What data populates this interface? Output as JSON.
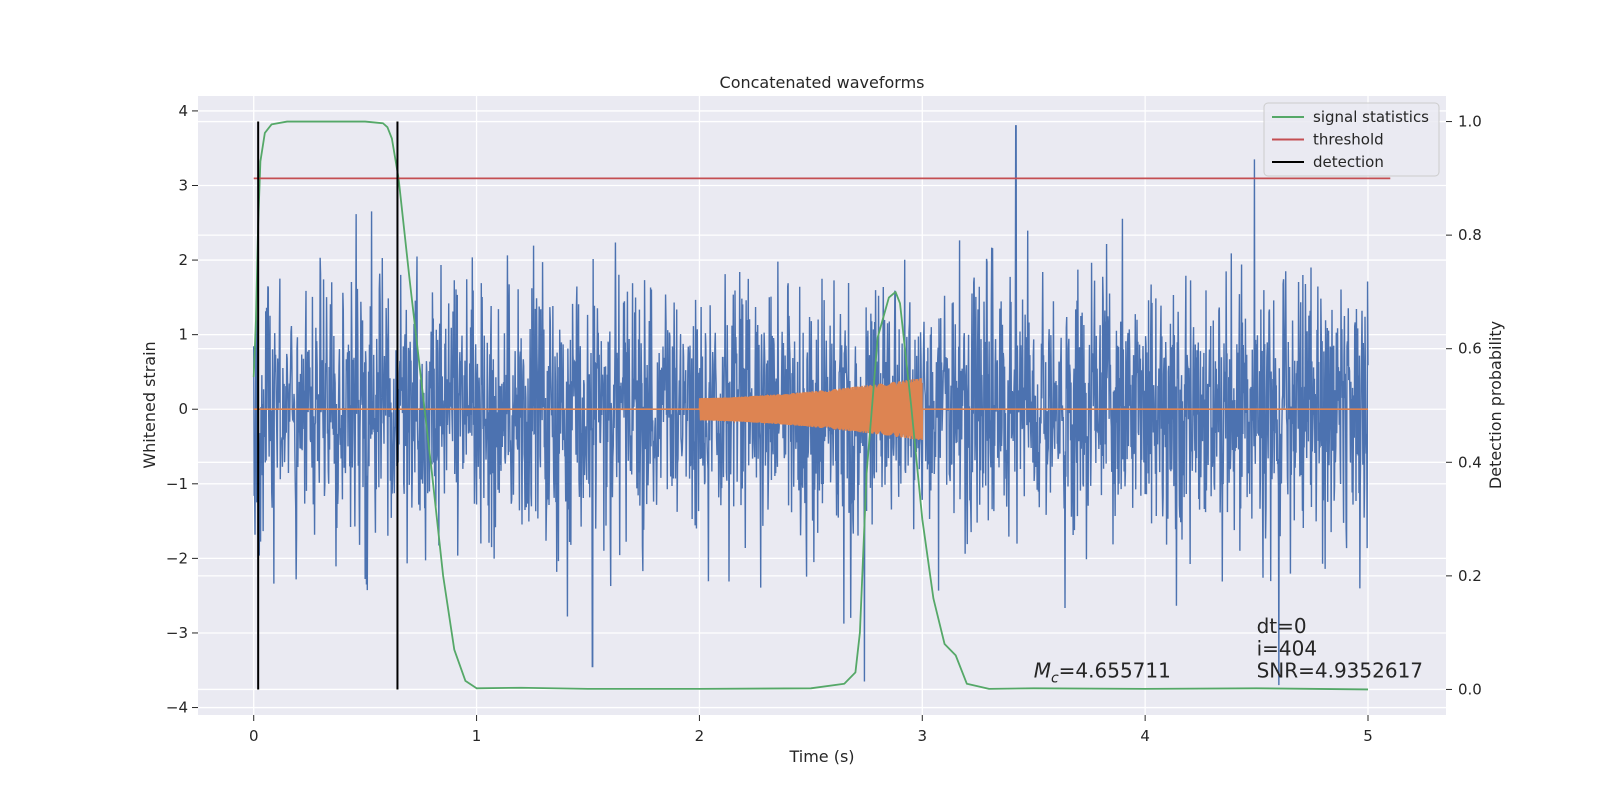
{
  "chart_data": {
    "type": "line",
    "title": "Concatenated waveforms",
    "xlabel": "Time (s)",
    "ylabel_left": "Whitened strain",
    "ylabel_right": "Detection probability",
    "xlim": [
      -0.25,
      5.35
    ],
    "ylim_left": [
      -4.1,
      4.2
    ],
    "ylim_right": [
      -0.045,
      1.045
    ],
    "x_ticks": [
      0,
      1,
      2,
      3,
      4,
      5
    ],
    "y_left_ticks": [
      4,
      3,
      2,
      1,
      0,
      -1,
      -2,
      -3,
      -4
    ],
    "y_right_ticks": [
      1.0,
      0.8,
      0.6,
      0.4,
      0.2,
      0.0
    ],
    "grid": true,
    "legend_position": "upper right",
    "legend": [
      {
        "label": "signal statistics",
        "color": "#55a868"
      },
      {
        "label": "threshold",
        "color": "#c44e52"
      },
      {
        "label": "detection",
        "color": "#000000"
      }
    ],
    "series": [
      {
        "axis": "left",
        "color": "#4c72b0",
        "kind": "noise",
        "x_range": [
          0,
          5
        ],
        "envelope": [
          -2.5,
          2.5
        ],
        "notable_peaks": [
          [
            3.42,
            3.8
          ],
          [
            2.74,
            -3.65
          ],
          [
            1.52,
            -3.45
          ],
          [
            4.49,
            3.35
          ],
          [
            4.6,
            -3.7
          ]
        ]
      },
      {
        "axis": "left",
        "color": "#dd8452",
        "kind": "chirp",
        "x_range": [
          0,
          5
        ],
        "chirp_start": 2.0,
        "chirp_end": 3.0,
        "amplitude_start": 0.15,
        "amplitude_end": 0.42
      },
      {
        "name": "signal statistics",
        "axis": "right",
        "color": "#55a868",
        "x": [
          0.0,
          0.01,
          0.02,
          0.03,
          0.05,
          0.08,
          0.15,
          0.3,
          0.5,
          0.58,
          0.6,
          0.62,
          0.65,
          0.7,
          0.75,
          0.8,
          0.85,
          0.9,
          0.95,
          1.0,
          1.2,
          1.5,
          2.0,
          2.5,
          2.65,
          2.7,
          2.72,
          2.75,
          2.8,
          2.85,
          2.88,
          2.9,
          2.95,
          3.0,
          3.05,
          3.1,
          3.15,
          3.2,
          3.3,
          3.5,
          4.0,
          4.5,
          5.0
        ],
        "values": [
          0.55,
          0.65,
          0.82,
          0.93,
          0.98,
          0.995,
          1.0,
          1.0,
          1.0,
          0.997,
          0.99,
          0.97,
          0.9,
          0.72,
          0.55,
          0.38,
          0.2,
          0.07,
          0.015,
          0.002,
          0.003,
          0.001,
          0.001,
          0.002,
          0.01,
          0.03,
          0.1,
          0.38,
          0.62,
          0.69,
          0.7,
          0.68,
          0.5,
          0.3,
          0.16,
          0.08,
          0.06,
          0.01,
          0.001,
          0.002,
          0.001,
          0.002,
          0.0
        ]
      },
      {
        "name": "threshold",
        "axis": "right",
        "color": "#c44e52",
        "x": [
          0.0,
          5.1
        ],
        "values": [
          0.9,
          0.9
        ]
      },
      {
        "name": "detection",
        "axis": "right",
        "color": "#000000",
        "kind": "vlines",
        "x": [
          0.02,
          0.645
        ],
        "values": [
          [
            0.0,
            1.0
          ],
          [
            0.0,
            1.0
          ]
        ]
      }
    ],
    "annotations": [
      {
        "text": "dt=0",
        "x": 4.5,
        "y": -3.0
      },
      {
        "text": "i=404",
        "x": 4.5,
        "y": -3.3
      },
      {
        "text": "=4.655711",
        "prefix": "M",
        "subscript": "c",
        "x": 3.5,
        "y": -3.6
      },
      {
        "text": "SNR=4.9352617",
        "x": 4.5,
        "y": -3.6
      }
    ]
  }
}
